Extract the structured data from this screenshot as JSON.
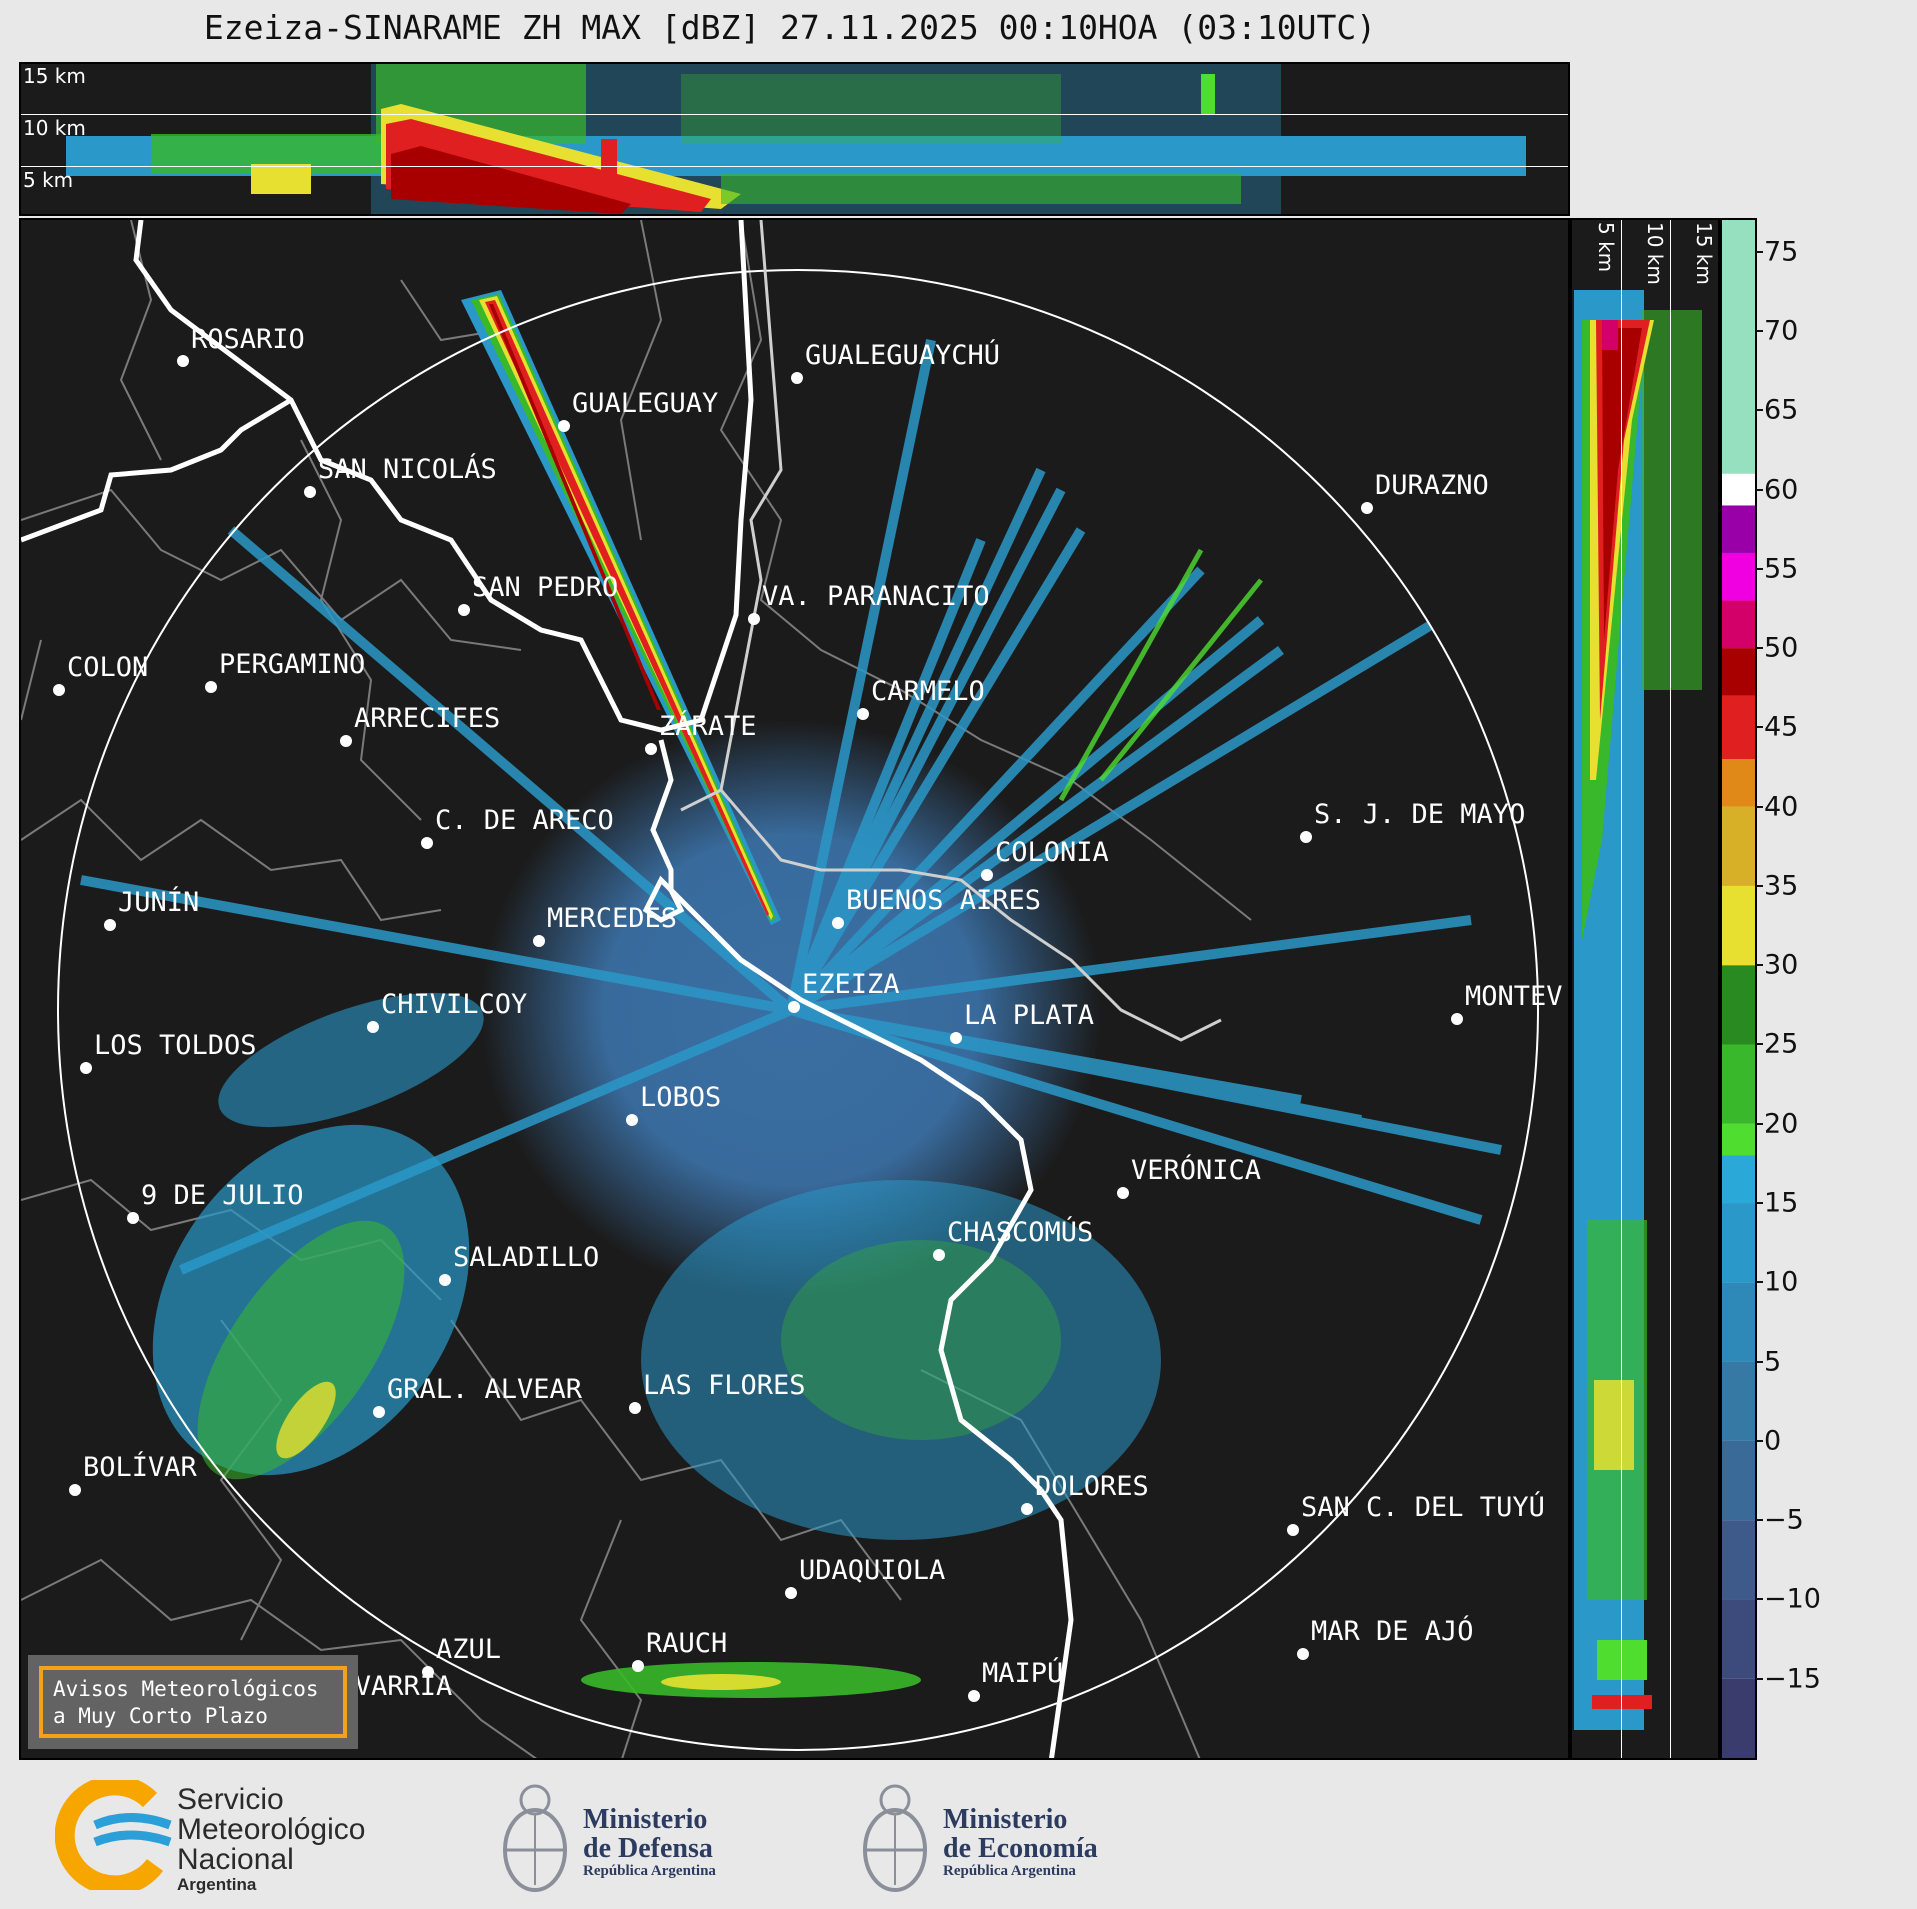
{
  "title": "Ezeiza-SINARAME ZH MAX [dBZ] 27.11.2025 00:10HOA (03:10UTC)",
  "height_labels": [
    "15 km",
    "10 km",
    "5 km"
  ],
  "colorbar": {
    "unit": "dBZ",
    "ticks": [
      "75",
      "70",
      "65",
      "60",
      "55",
      "50",
      "45",
      "40",
      "35",
      "30",
      "25",
      "20",
      "15",
      "10",
      "5",
      "0",
      "−5",
      "−10",
      "−15"
    ],
    "tick_values": [
      75,
      70,
      65,
      60,
      55,
      50,
      45,
      40,
      35,
      30,
      25,
      20,
      15,
      10,
      5,
      0,
      -5,
      -10,
      -15
    ],
    "range": [
      -20,
      77
    ],
    "bands": [
      {
        "from": -20,
        "to": -15,
        "color": "#3b3c6e"
      },
      {
        "from": -15,
        "to": -10,
        "color": "#3d4a7c"
      },
      {
        "from": -10,
        "to": -5,
        "color": "#3e5a8b"
      },
      {
        "from": -5,
        "to": 0,
        "color": "#3a6a97"
      },
      {
        "from": 0,
        "to": 5,
        "color": "#3679a5"
      },
      {
        "from": 5,
        "to": 10,
        "color": "#2f89b8"
      },
      {
        "from": 10,
        "to": 15,
        "color": "#2a98c8"
      },
      {
        "from": 15,
        "to": 18,
        "color": "#2aa9d8"
      },
      {
        "from": 18,
        "to": 20,
        "color": "#4fdd2f"
      },
      {
        "from": 20,
        "to": 25,
        "color": "#38b82a"
      },
      {
        "from": 25,
        "to": 30,
        "color": "#2a8a22"
      },
      {
        "from": 30,
        "to": 35,
        "color": "#e8e030"
      },
      {
        "from": 35,
        "to": 40,
        "color": "#d8b028"
      },
      {
        "from": 40,
        "to": 43,
        "color": "#e08818"
      },
      {
        "from": 43,
        "to": 47,
        "color": "#e02020"
      },
      {
        "from": 47,
        "to": 50,
        "color": "#a80000"
      },
      {
        "from": 50,
        "to": 53,
        "color": "#d4006a"
      },
      {
        "from": 53,
        "to": 56,
        "color": "#f000e0"
      },
      {
        "from": 56,
        "to": 59,
        "color": "#9a00a8"
      },
      {
        "from": 59,
        "to": 61,
        "color": "#ffffff"
      },
      {
        "from": 61,
        "to": 77,
        "color": "#96e0c0"
      }
    ]
  },
  "cities": [
    {
      "name": "ROSARIO"
    },
    {
      "name": "GUALEGUAYCHÚ"
    },
    {
      "name": "GUALEGUAY"
    },
    {
      "name": "SAN NICOLÁS"
    },
    {
      "name": "DURAZNO"
    },
    {
      "name": "SAN PEDRO"
    },
    {
      "name": "VA. PARANACITO"
    },
    {
      "name": "COLON"
    },
    {
      "name": "PERGAMINO"
    },
    {
      "name": "CARMELO"
    },
    {
      "name": "ARRECIFES"
    },
    {
      "name": "ZÁRATE"
    },
    {
      "name": "S. J. DE MAYO"
    },
    {
      "name": "C. DE ARECO"
    },
    {
      "name": "COLONIA"
    },
    {
      "name": "JUNÍN"
    },
    {
      "name": "BUENOS AIRES"
    },
    {
      "name": "MERCEDES"
    },
    {
      "name": "MONTEV"
    },
    {
      "name": "EZEIZA"
    },
    {
      "name": "CHIVILCOY"
    },
    {
      "name": "LA PLATA"
    },
    {
      "name": "LOS TOLDOS"
    },
    {
      "name": "LOBOS"
    },
    {
      "name": "VERÓNICA"
    },
    {
      "name": "9 DE JULIO"
    },
    {
      "name": "CHASCOMÚS"
    },
    {
      "name": "SALADILLO"
    },
    {
      "name": "GRAL. ALVEAR"
    },
    {
      "name": "LAS FLORES"
    },
    {
      "name": "BOLÍVAR"
    },
    {
      "name": "DOLORES"
    },
    {
      "name": "SAN C. DEL TUYÚ"
    },
    {
      "name": "UDAQUIOLA"
    },
    {
      "name": "MAR DE AJÓ"
    },
    {
      "name": "AZUL"
    },
    {
      "name": "RAUCH"
    },
    {
      "name": "MAIPÚ"
    },
    {
      "name": "OLAVARRÍA"
    }
  ],
  "legend": {
    "text": "Avisos Meteorológicos\na Muy Corto Plazo"
  },
  "logos": {
    "smn": {
      "line1": "Servicio",
      "line2": "Meteorológico",
      "line3": "Nacional",
      "line4": "Argentina"
    },
    "defensa": {
      "line1": "Ministerio",
      "line2": "de Defensa",
      "line3": "República Argentina"
    },
    "economia": {
      "line1": "Ministerio",
      "line2": "de Economía",
      "line3": "República Argentina"
    }
  },
  "colors": {
    "background": "#1b1b1b",
    "page": "#e8e8e8",
    "legend_border": "#f4a21a",
    "smn_orange": "#f7a600",
    "smn_blue": "#2ba0d8"
  }
}
